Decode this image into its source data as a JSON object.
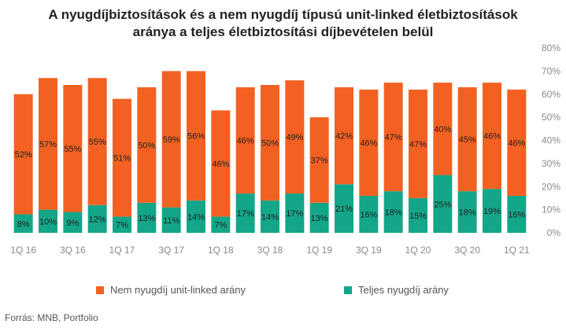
{
  "title_line1": "A nyugdíjbiztosítások és a nem nyugdíj típusú unit-linked életbiztosítások",
  "title_line2": "aránya a teljes életbiztosítási díjbevételen belül",
  "source": "Forrás: MNB, Portfolio",
  "colors": {
    "orange": "#f26122",
    "teal": "#13a689",
    "axis": "#8a8a8a"
  },
  "chart_data": {
    "type": "bar",
    "stacked": true,
    "categories": [
      "1Q 16",
      "2Q 16",
      "3Q 16",
      "4Q 16",
      "1Q 17",
      "2Q 17",
      "3Q 17",
      "4Q 17",
      "1Q 18",
      "2Q 18",
      "3Q 18",
      "4Q 18",
      "1Q 19",
      "2Q 19",
      "3Q 19",
      "4Q 19",
      "1Q 20",
      "2Q 20",
      "3Q 20",
      "4Q 20",
      "1Q 21"
    ],
    "x_tick_labels": [
      "1Q 16",
      "3Q 16",
      "1Q 17",
      "3Q 17",
      "1Q 18",
      "3Q 18",
      "1Q 19",
      "3Q 19",
      "1Q 20",
      "3Q 20",
      "1Q 21"
    ],
    "y_ticks": [
      "0%",
      "10%",
      "20%",
      "30%",
      "40%",
      "50%",
      "60%",
      "70%",
      "80%"
    ],
    "ylim": [
      0,
      80
    ],
    "y_axis_side": "right",
    "legend_position": "bottom",
    "series": [
      {
        "name": "Teljes nyugdíj arány",
        "color": "#13a689",
        "values": [
          8,
          10,
          9,
          12,
          7,
          13,
          11,
          14,
          7,
          17,
          14,
          17,
          13,
          21,
          16,
          18,
          15,
          25,
          18,
          19,
          16
        ],
        "labels": [
          "8%",
          "10%",
          "9%",
          "12%",
          "7%",
          "13%",
          "11%",
          "14%",
          "7%",
          "17%",
          "14%",
          "17%",
          "13%",
          "21%",
          "16%",
          "18%",
          "15%",
          "25%",
          "18%",
          "19%",
          "16%"
        ]
      },
      {
        "name": "Nem nyugdíj unit-linked arány",
        "color": "#f26122",
        "values": [
          52,
          57,
          55,
          55,
          51,
          50,
          59,
          56,
          46,
          46,
          50,
          49,
          37,
          42,
          46,
          47,
          47,
          40,
          45,
          46,
          46
        ],
        "labels": [
          "52%",
          "57%",
          "55%",
          "55%",
          "51%",
          "50%",
          "59%",
          "56%",
          "46%",
          "46%",
          "50%",
          "49%",
          "37%",
          "42%",
          "46%",
          "47%",
          "47%",
          "40%",
          "45%",
          "46%",
          "46%"
        ]
      }
    ]
  },
  "legend": [
    {
      "label": "Nem nyugdíj unit-linked arány",
      "color": "#f26122"
    },
    {
      "label": "Teljes nyugdíj arány",
      "color": "#13a689"
    }
  ]
}
